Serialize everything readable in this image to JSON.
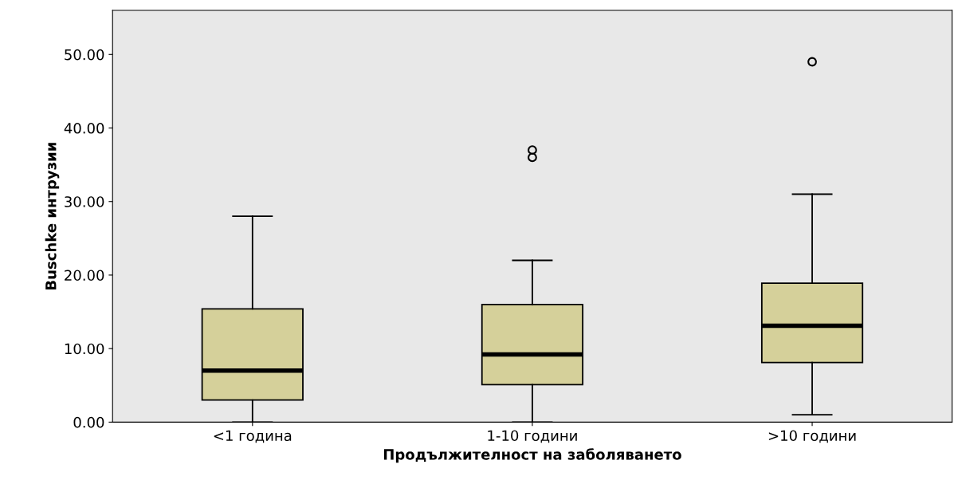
{
  "chart_data": {
    "type": "box",
    "xlabel": "Продължителност на заболяването",
    "ylabel": "Buschke интрузии",
    "categories": [
      "<1 година",
      "1-10 години",
      ">10 години"
    ],
    "color": "#d5d09a",
    "boxes": [
      {
        "low": 0,
        "q1": 3,
        "median": 7,
        "q3": 15.4,
        "high": 28
      },
      {
        "low": 0,
        "q1": 5.1,
        "median": 9.2,
        "q3": 16,
        "high": 22,
        "outliers": [
          37,
          36
        ]
      },
      {
        "low": 1,
        "q1": 8.1,
        "median": 13.1,
        "q3": 18.9,
        "high": 31,
        "outliers": [
          49
        ]
      }
    ],
    "ylim": [
      0,
      56
    ],
    "yticks": [
      {
        "value": 0,
        "label": "0.00"
      },
      {
        "value": 10,
        "label": "10.00"
      },
      {
        "value": 20,
        "label": "20.00"
      },
      {
        "value": 30,
        "label": "30.00"
      },
      {
        "value": 40,
        "label": "40.00"
      },
      {
        "value": 50,
        "label": "50.00"
      }
    ],
    "grid": false
  }
}
